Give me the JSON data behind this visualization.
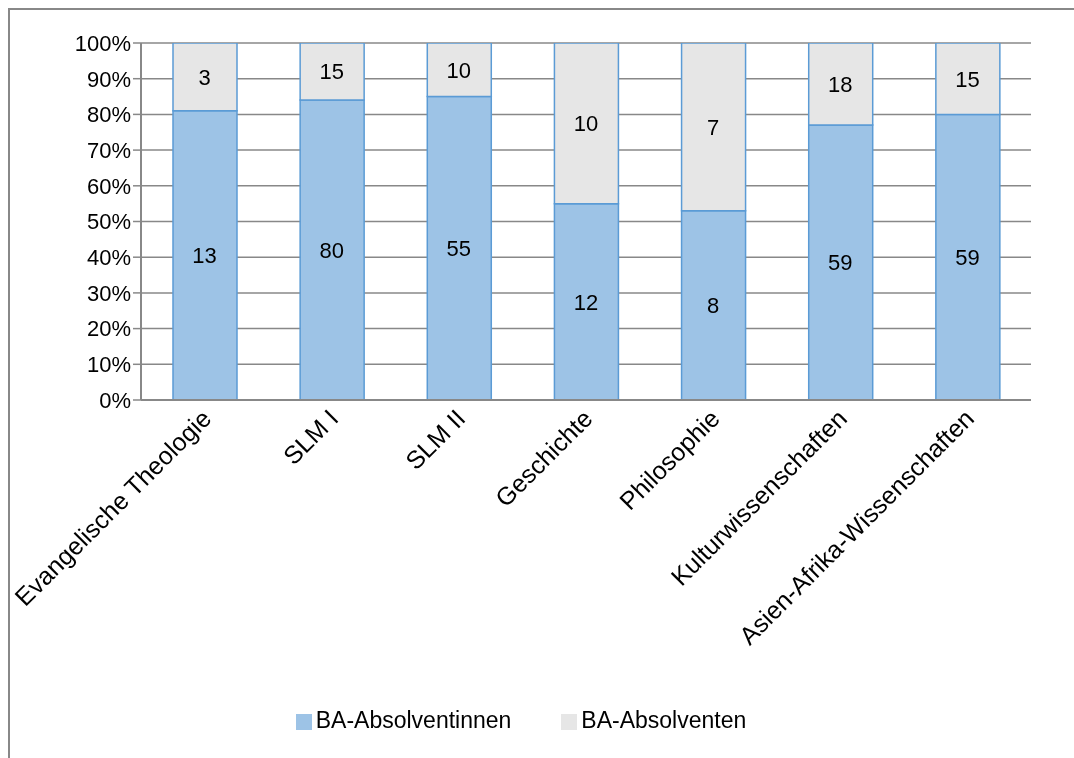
{
  "chart_data": {
    "type": "bar",
    "stacked": true,
    "categories": [
      "Evangelische Theologie",
      "SLM I",
      "SLM II",
      "Geschichte",
      "Philosophie",
      "Kulturwissenschaften",
      "Asien-Afrika-Wissenschaften"
    ],
    "series": [
      {
        "name": "BA-Absolventinnen",
        "color": "#9dc3e6",
        "values": [
          81,
          84,
          85,
          55,
          53,
          77,
          80
        ]
      },
      {
        "name": "BA-Absolventen",
        "color": "#e6e6e6",
        "values": [
          19,
          16,
          15,
          45,
          47,
          23,
          20
        ]
      }
    ],
    "ylim": [
      0,
      100
    ],
    "yticks": [
      {
        "value": 0,
        "label": "0%"
      },
      {
        "value": 10,
        "label": "10%"
      },
      {
        "value": 20,
        "label": "20%"
      },
      {
        "value": 30,
        "label": "30%"
      },
      {
        "value": 40,
        "label": "40%"
      },
      {
        "value": 50,
        "label": "50%"
      },
      {
        "value": 60,
        "label": "60%"
      },
      {
        "value": 70,
        "label": "70%"
      },
      {
        "value": 80,
        "label": "80%"
      },
      {
        "value": 90,
        "label": "90%"
      },
      {
        "value": 100,
        "label": "100%"
      }
    ],
    "grid": "y",
    "legend": "bottom",
    "annotations": [
      "13",
      "3",
      "80",
      "15",
      "55",
      "10",
      "12",
      "10",
      "8",
      "7",
      "59",
      "18",
      "59",
      "15"
    ]
  }
}
